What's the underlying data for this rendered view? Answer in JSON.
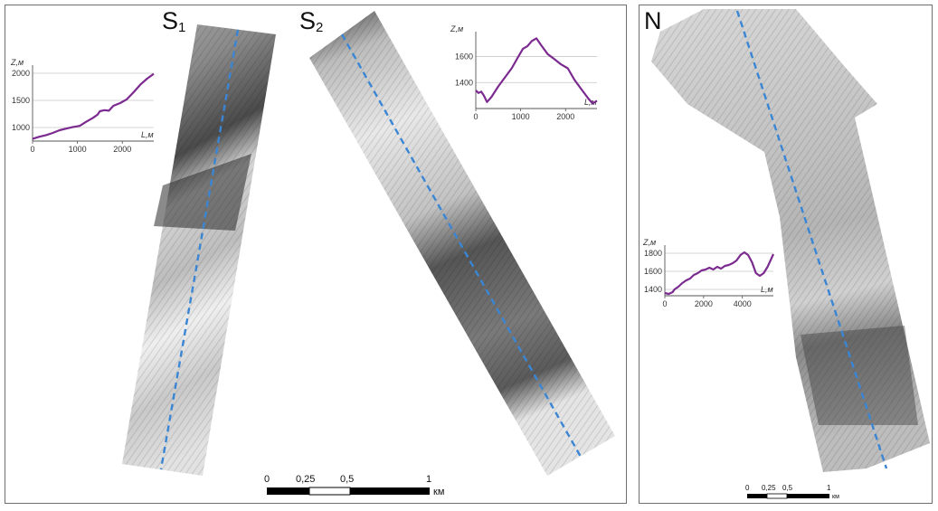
{
  "panels": {
    "left": {
      "title_s1": "S",
      "title_s1_sub": "1",
      "title_s2": "S",
      "title_s2_sub": "2"
    },
    "right": {
      "title_n": "N"
    }
  },
  "scalebar_main": {
    "labels": [
      "0",
      "0,25",
      "0,5",
      "1"
    ],
    "unit": "км"
  },
  "scalebar_small": {
    "labels": [
      "0",
      "0,25",
      "0,5",
      "1"
    ],
    "unit": "км"
  },
  "colors": {
    "profile_line": "#7b2a8f",
    "track_line": "#3a86d4",
    "grid": "#c8c8c8",
    "frame": "#6f6f6f"
  },
  "chart_data": [
    {
      "id": "S1",
      "type": "line",
      "ylabel": "Z,м",
      "xlabel": "L,м",
      "xlim": [
        0,
        2700
      ],
      "ylim": [
        750,
        2050
      ],
      "yticks": [
        1000,
        1500,
        2000
      ],
      "xticks": [
        0,
        1000,
        2000
      ],
      "x": [
        0,
        150,
        300,
        450,
        600,
        750,
        900,
        1050,
        1200,
        1350,
        1450,
        1500,
        1600,
        1700,
        1800,
        1950,
        2100,
        2250,
        2400,
        2550,
        2700
      ],
      "y": [
        790,
        830,
        860,
        900,
        950,
        980,
        1010,
        1030,
        1110,
        1180,
        1240,
        1300,
        1320,
        1310,
        1400,
        1450,
        1520,
        1650,
        1790,
        1900,
        1990
      ]
    },
    {
      "id": "S2",
      "type": "line",
      "ylabel": "Z,м",
      "xlabel": "L,м",
      "xlim": [
        0,
        2700
      ],
      "ylim": [
        1200,
        1750
      ],
      "yticks": [
        1400,
        1600
      ],
      "xticks": [
        0,
        1000,
        2000
      ],
      "x": [
        0,
        60,
        120,
        180,
        250,
        350,
        500,
        650,
        800,
        950,
        1050,
        1150,
        1250,
        1350,
        1450,
        1600,
        1750,
        1900,
        2050,
        2200,
        2350,
        2500,
        2600,
        2700
      ],
      "y": [
        1340,
        1320,
        1330,
        1300,
        1250,
        1290,
        1370,
        1440,
        1510,
        1600,
        1660,
        1680,
        1720,
        1740,
        1690,
        1620,
        1580,
        1540,
        1510,
        1420,
        1350,
        1280,
        1240,
        1260
      ]
    },
    {
      "id": "N",
      "type": "line",
      "ylabel": "Z,м",
      "xlabel": "L,м",
      "xlim": [
        0,
        5600
      ],
      "ylim": [
        1330,
        1830
      ],
      "yticks": [
        1400,
        1600,
        1800
      ],
      "xticks": [
        0,
        2000,
        4000
      ],
      "x": [
        0,
        200,
        400,
        500,
        700,
        900,
        1100,
        1300,
        1500,
        1700,
        1900,
        2100,
        2300,
        2500,
        2700,
        2900,
        3100,
        3300,
        3500,
        3700,
        3900,
        4100,
        4300,
        4500,
        4700,
        4900,
        5100,
        5300,
        5600
      ],
      "y": [
        1360,
        1350,
        1370,
        1400,
        1430,
        1470,
        1500,
        1520,
        1560,
        1580,
        1610,
        1620,
        1640,
        1620,
        1650,
        1630,
        1660,
        1670,
        1690,
        1720,
        1780,
        1810,
        1780,
        1700,
        1580,
        1550,
        1580,
        1650,
        1790
      ]
    }
  ]
}
